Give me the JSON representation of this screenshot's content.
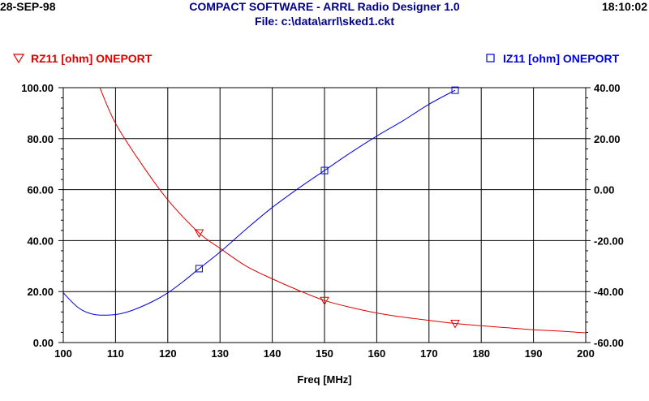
{
  "header": {
    "date": "28-SEP-98",
    "title": "COMPACT SOFTWARE - ARRL Radio Designer 1.0",
    "file": "File: c:\\data\\arrl\\sked1.ckt",
    "time": "18:10:02"
  },
  "colors": {
    "series_red": "#e00000",
    "series_blue": "#0000e0",
    "title_blue": "#00008b",
    "grid": "#000000"
  },
  "chart_data": {
    "type": "line",
    "xlabel": "Freq [MHz]",
    "xlim": [
      100,
      200
    ],
    "xticks": [
      100,
      110,
      120,
      130,
      140,
      150,
      160,
      170,
      180,
      190,
      200
    ],
    "ylim_left": [
      0,
      100
    ],
    "yticks_left": [
      "0.00",
      "20.00",
      "40.00",
      "60.00",
      "80.00",
      "100.00"
    ],
    "ylim_right": [
      -60,
      40
    ],
    "yticks_right": [
      "-60.00",
      "-40.00",
      "-20.00",
      "0.00",
      "20.00",
      "40.00"
    ],
    "grid": true,
    "legend_placement": "top",
    "series": [
      {
        "name": "RZ11 [ohm] ONEPORT",
        "axis": "left",
        "marker": "triangle-down",
        "color": "#e00000",
        "x": [
          107,
          110,
          115,
          120,
          126,
          130,
          135,
          140,
          145,
          150,
          155,
          160,
          165,
          170,
          175,
          180,
          185,
          190,
          195,
          200
        ],
        "y": [
          100,
          86,
          70,
          56,
          43,
          37,
          30,
          25,
          20.5,
          16.5,
          13.8,
          11.6,
          10,
          8.7,
          7.5,
          6.6,
          5.8,
          5,
          4.5,
          3.8
        ],
        "marker_x": [
          126,
          150,
          175
        ]
      },
      {
        "name": "IZ11 [ohm] ONEPORT",
        "axis": "right",
        "marker": "square",
        "color": "#0000e0",
        "x": [
          100,
          103,
          106,
          110,
          113,
          117,
          120,
          123,
          126,
          130,
          135,
          140,
          145,
          150,
          155,
          160,
          165,
          170,
          175
        ],
        "y": [
          -40.5,
          -46.5,
          -49,
          -49,
          -47.5,
          -44,
          -40.5,
          -36,
          -31,
          -24.5,
          -15.5,
          -7,
          0.5,
          7.5,
          14.5,
          21,
          27,
          33.5,
          39
        ],
        "marker_x": [
          126,
          150,
          175
        ]
      }
    ]
  }
}
